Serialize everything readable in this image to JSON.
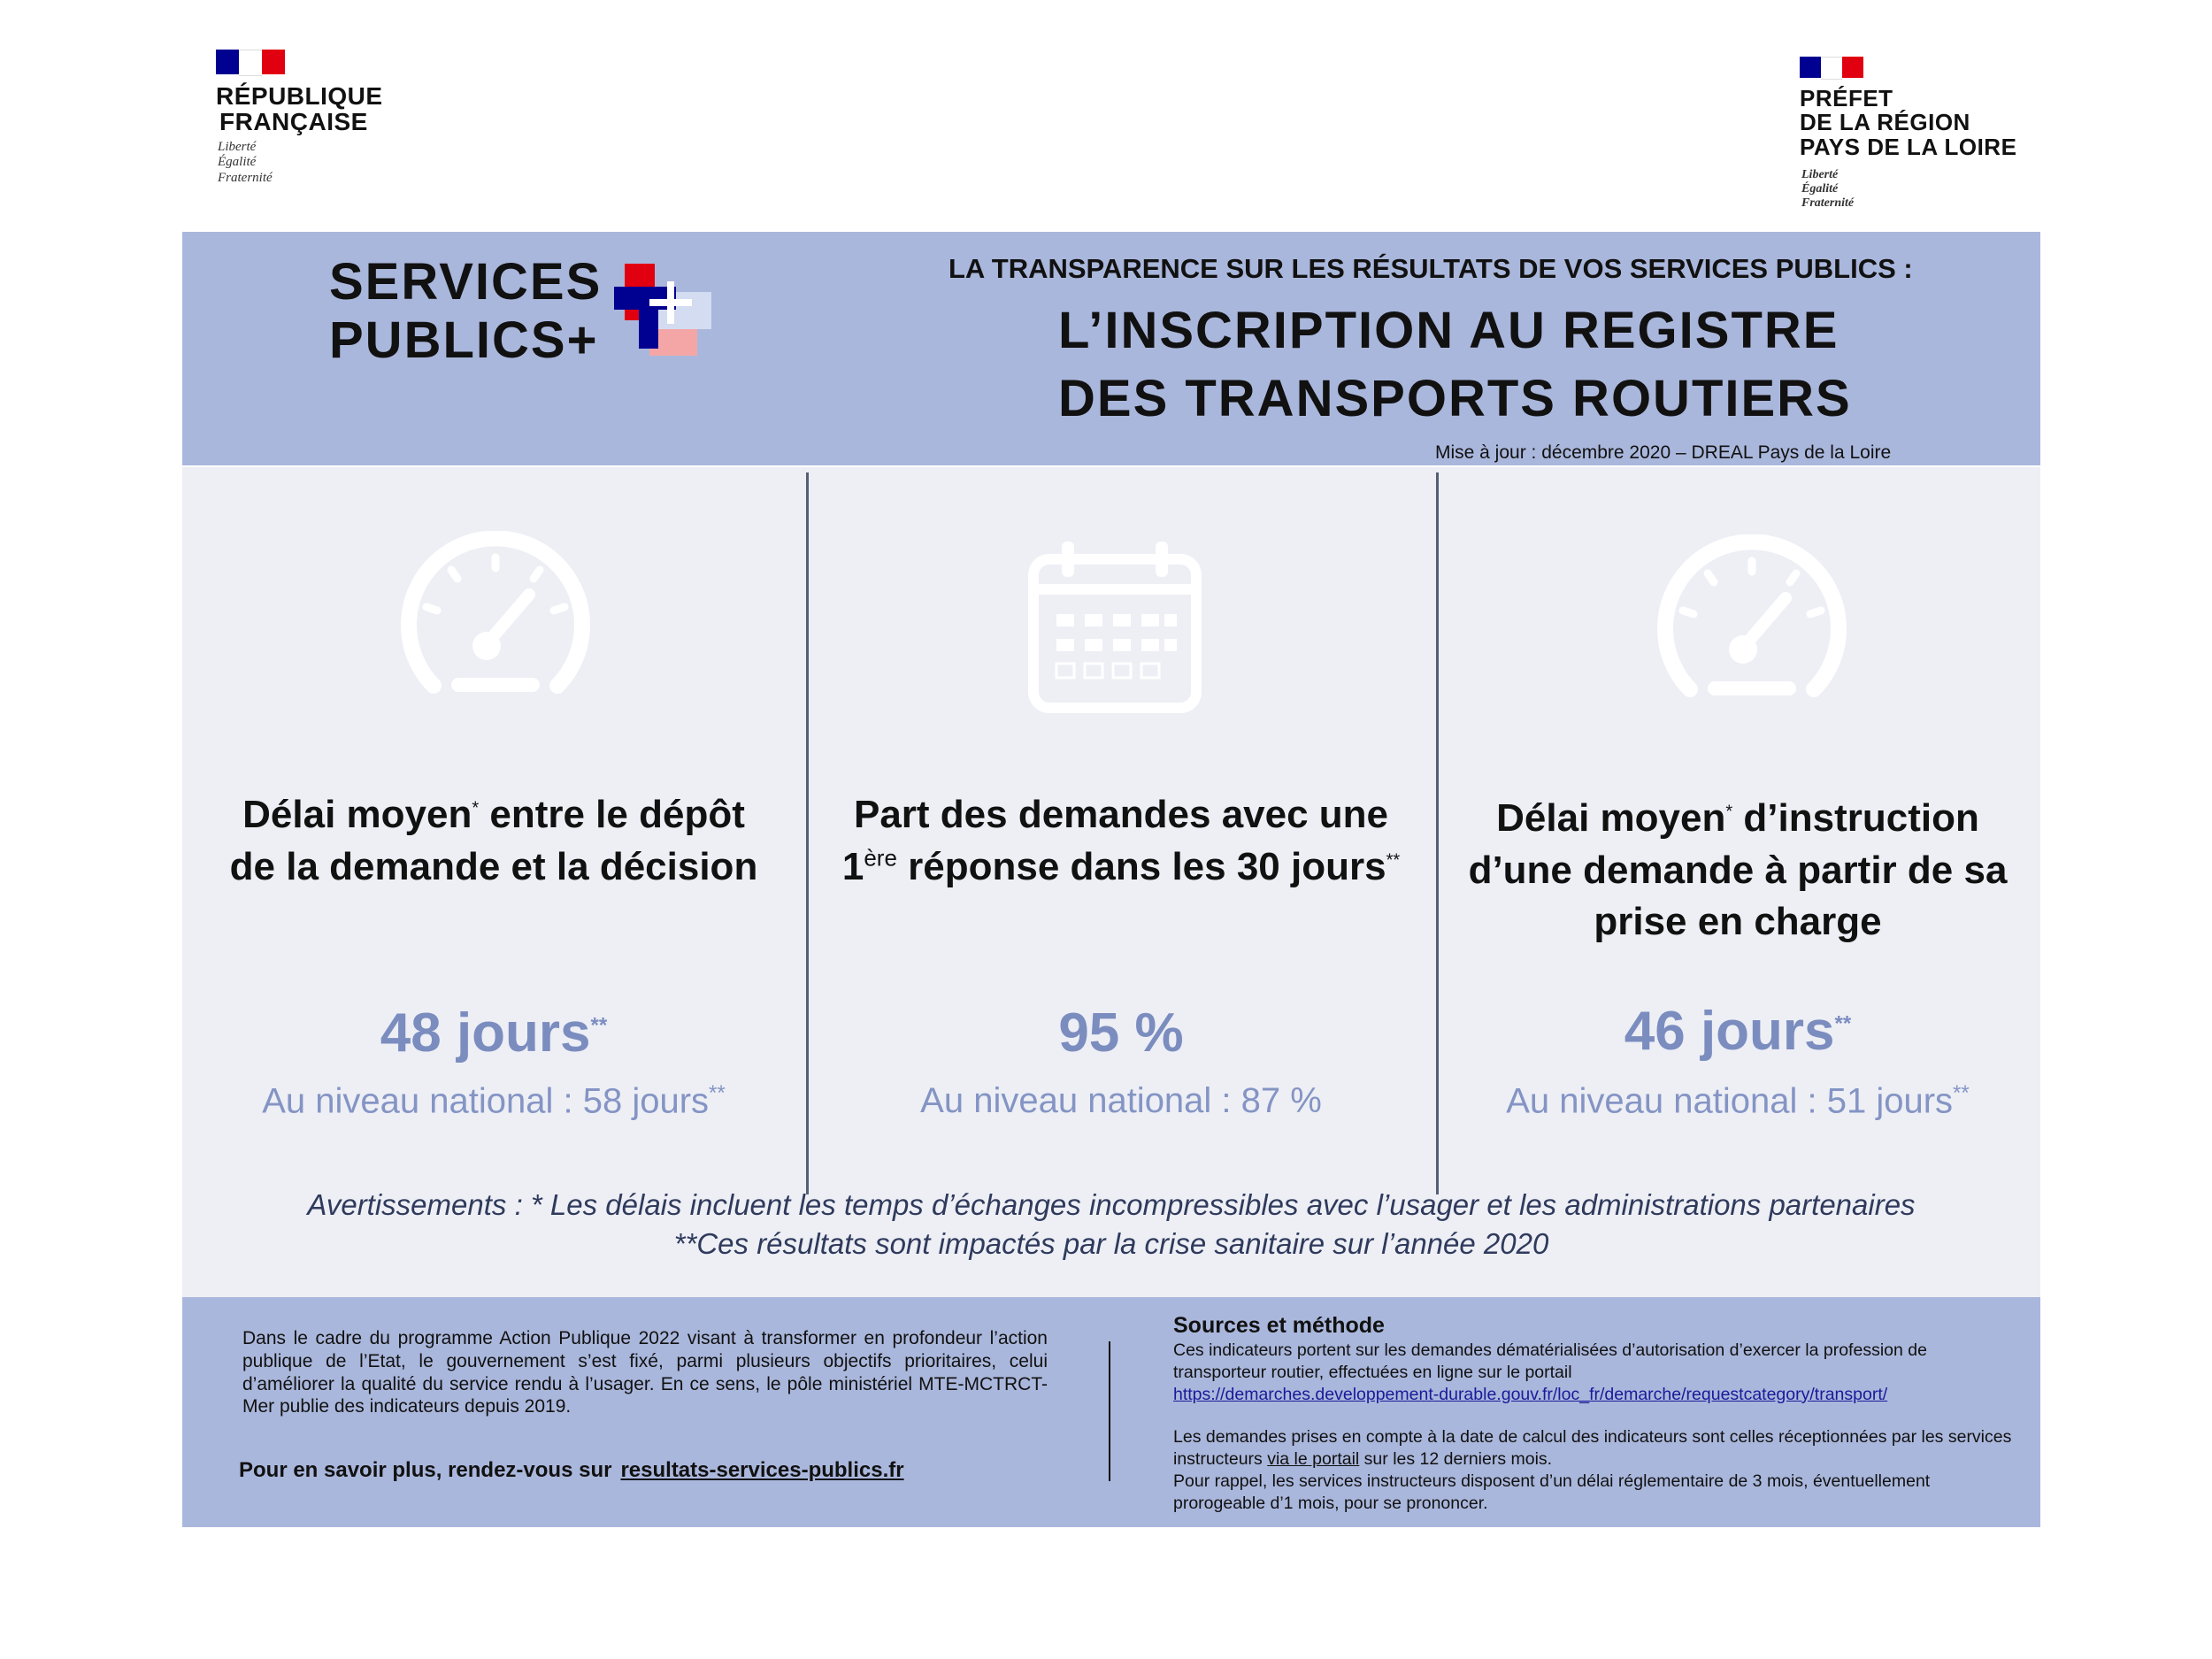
{
  "logo_left": {
    "flag_colors": [
      "#000091",
      "#ffffff",
      "#e1000f"
    ],
    "line1": "RÉPUBLIQUE",
    "line2": "FRANÇAISE",
    "motto": [
      "Liberté",
      "Égalité",
      "Fraternité"
    ]
  },
  "logo_right": {
    "line1": "PRÉFET",
    "line2": "DE LA RÉGION",
    "line3": "PAYS DE LA LOIRE",
    "motto": [
      "Liberté",
      "Égalité",
      "Fraternité"
    ]
  },
  "header": {
    "brand_line1": "SERVICES",
    "brand_line2": "PUBLICS+",
    "subtitle": "LA TRANSPARENCE SUR LES  RÉSULTATS DE VOS SERVICES PUBLICS :",
    "title_line1": "L’INSCRIPTION AU REGISTRE",
    "title_line2": "DES TRANSPORTS ROUTIERS",
    "update": "Mise à jour : décembre 2020 – DREAL Pays de la Loire"
  },
  "indicators": [
    {
      "icon": "speedometer-icon",
      "title_a": "Délai moyen",
      "title_star": "*",
      "title_b": " entre le dépôt",
      "title_line2": "de la demande et la décision",
      "value": "48 jours",
      "value_mark": "**",
      "national": "Au niveau national : 58 jours",
      "national_mark": "**"
    },
    {
      "icon": "calendar-icon",
      "title_line1": "Part des demandes avec une",
      "title_a": "1",
      "title_sup": "ère",
      "title_b": " réponse dans les 30 jours",
      "title_star": "**",
      "value": "95 %",
      "national": "Au niveau national : 87 %"
    },
    {
      "icon": "speedometer-icon",
      "title_a": "Délai moyen",
      "title_star": "*",
      "title_b": " d’instruction",
      "title_line2": "d’une demande à partir de sa",
      "title_line3": "prise en charge",
      "value": "46 jours",
      "value_mark": "**",
      "national": "Au niveau national : 51 jours",
      "national_mark": "**"
    }
  ],
  "warnings": {
    "line1": "Avertissements : * Les délais incluent les temps d’échanges incompressibles avec l’usager et les administrations partenaires",
    "line2": "**Ces résultats sont impactés par la crise sanitaire sur l’année 2020"
  },
  "footer": {
    "left_paragraph": "Dans le cadre du programme Action Publique 2022 visant à transformer en profondeur l’action publique de l’Etat, le gouvernement s’est fixé, parmi plusieurs objectifs prioritaires, celui d’améliorer la qualité du service rendu à l’usager. En ce sens, le pôle ministériel MTE-MCTRCT-Mer publie des indicateurs depuis 2019.",
    "more_label": "Pour en savoir plus, rendez-vous sur",
    "more_link": "resultats-services-publics.fr",
    "sources_heading": "Sources et méthode",
    "sources_p1": "Ces indicateurs portent sur les demandes dématérialisées d’autorisation d’exercer la profession de transporteur routier, effectuées en ligne sur le portail",
    "sources_url": "https://demarches.developpement-durable.gouv.fr/loc_fr/demarche/requestcategory/transport/",
    "sources_p2a": "Les demandes prises en compte à la date de calcul des indicateurs sont celles réceptionnées par les services instructeurs ",
    "sources_p2_link": "via le portail",
    "sources_p2b": " sur les 12 derniers mois.",
    "sources_p3": "Pour rappel, les services instructeurs disposent d’un délai réglementaire de 3 mois, éventuellement prorogeable d’1 mois, pour se prononcer."
  },
  "colors": {
    "band": "#aab7dc",
    "panel": "#edeff5",
    "value": "#7b8cbf",
    "brand_blue": "#000091",
    "brand_red": "#e1000f"
  }
}
